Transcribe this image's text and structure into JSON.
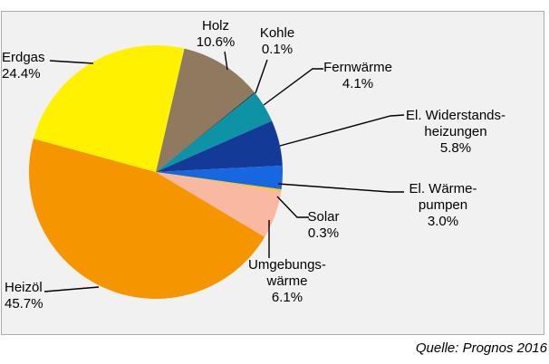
{
  "chart_data": {
    "type": "pie",
    "title": "",
    "source": "Quelle: Prognos 2016",
    "start_angle_deg": 13,
    "legend_position": "none",
    "slices": [
      {
        "id": "holz",
        "label": "Holz",
        "value": 10.6,
        "display": "10.6%",
        "color": "#8F7A5F"
      },
      {
        "id": "kohle",
        "label": "Kohle",
        "value": 0.1,
        "display": "0.1%",
        "color": "#141414"
      },
      {
        "id": "fernwaerme",
        "label": "Fernwärme",
        "value": 4.1,
        "display": "4.1%",
        "color": "#0E93A5"
      },
      {
        "id": "widerstand",
        "label": "El. Widerstandsheizungen",
        "value": 5.8,
        "display": "5.8%",
        "color": "#123A96"
      },
      {
        "id": "waermepumpen",
        "label": "El. Wärmepumpen",
        "value": 3.0,
        "display": "3.0%",
        "color": "#1667E0"
      },
      {
        "id": "solar",
        "label": "Solar",
        "value": 0.3,
        "display": "0.3%",
        "color": "#FFC61E"
      },
      {
        "id": "umgebung",
        "label": "Umgebungswärme",
        "value": 6.1,
        "display": "6.1%",
        "color": "#F8B8A2"
      },
      {
        "id": "heizoel",
        "label": "Heizöl",
        "value": 45.7,
        "display": "45.7%",
        "color": "#F59600"
      },
      {
        "id": "erdgas",
        "label": "Erdgas",
        "value": 24.4,
        "display": "24.4%",
        "color": "#FFF100"
      }
    ]
  },
  "labels": {
    "erdgas": {
      "lines": [
        "Erdgas",
        "24.4%"
      ]
    },
    "holz": {
      "lines": [
        "Holz",
        "10.6%"
      ]
    },
    "kohle": {
      "lines": [
        "Kohle",
        "0.1%"
      ]
    },
    "fernwaerme": {
      "lines": [
        "Fernwärme",
        "4.1%"
      ]
    },
    "widerstand": {
      "lines": [
        "El. Widerstands-",
        "heizungen",
        "5.8%"
      ]
    },
    "waermepumpen": {
      "lines": [
        "El. Wärme-",
        "pumpen",
        "3.0%"
      ]
    },
    "solar": {
      "lines": [
        "Solar",
        "0.3%"
      ]
    },
    "umgebung": {
      "lines": [
        "Umgebungs-",
        "wärme",
        "6.1%"
      ]
    },
    "heizoel": {
      "lines": [
        "Heizöl",
        "45.7%"
      ]
    }
  },
  "source": {
    "text": "Quelle: Prognos 2016"
  },
  "colors": {
    "chart_background": "#F1F1F1",
    "border": "#ABABAB",
    "leader_line": "#000000",
    "text": "#000000"
  }
}
